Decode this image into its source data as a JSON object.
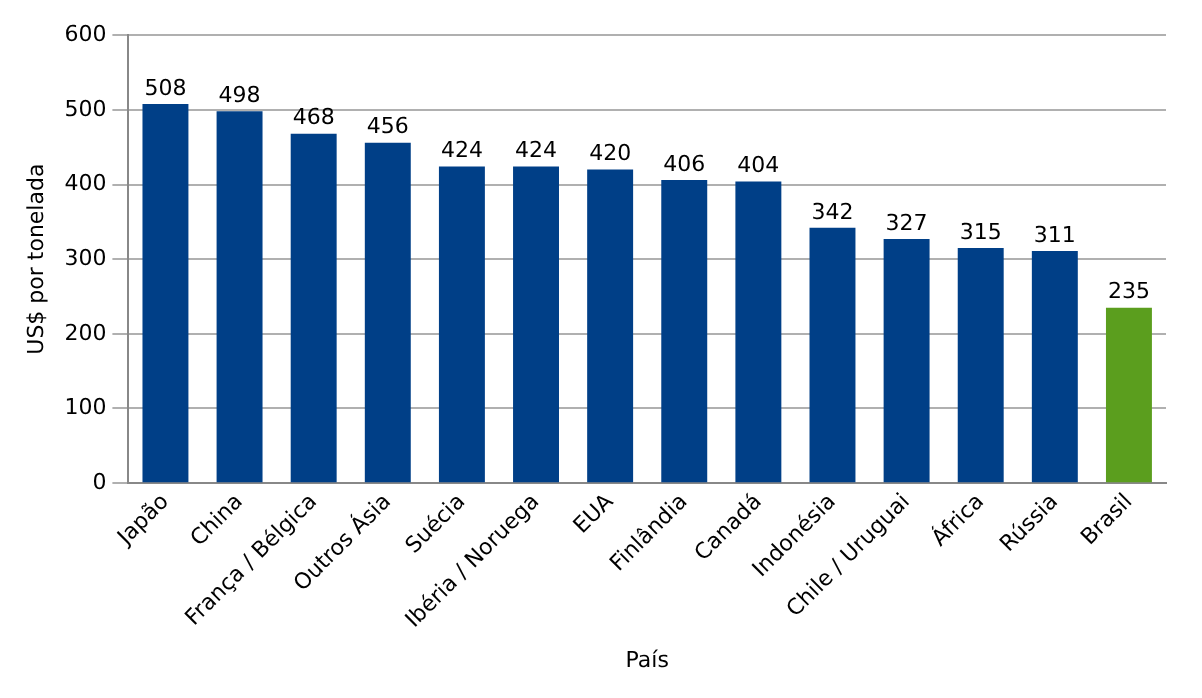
{
  "chart_data": {
    "type": "bar",
    "xlabel": "País",
    "ylabel": "US$ por tonelada",
    "categories": [
      "Japão",
      "China",
      "França / Bélgica",
      "Outros Ásia",
      "Suécia",
      "Ibéria / Noruega",
      "EUA",
      "Finlândia",
      "Canadá",
      "Indonésia",
      "Chile / Uruguai",
      "África",
      "Rússia",
      "Brasil"
    ],
    "values": [
      508,
      498,
      468,
      456,
      424,
      424,
      420,
      406,
      404,
      342,
      327,
      315,
      311,
      235
    ],
    "colors": [
      "#003f87",
      "#003f87",
      "#003f87",
      "#003f87",
      "#003f87",
      "#003f87",
      "#003f87",
      "#003f87",
      "#003f87",
      "#003f87",
      "#003f87",
      "#003f87",
      "#003f87",
      "#5b9e1e"
    ],
    "ylim": [
      0,
      600
    ],
    "yticks": [
      0,
      100,
      200,
      300,
      400,
      500,
      600
    ],
    "grid": "y",
    "data_labels": true
  }
}
